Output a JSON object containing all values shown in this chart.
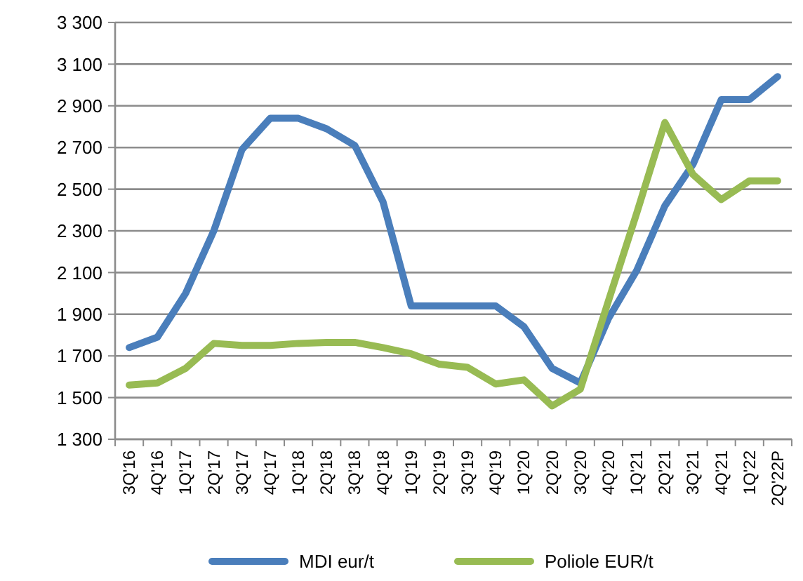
{
  "chart_data": {
    "type": "line",
    "categories": [
      "3Q'16",
      "4Q'16",
      "1Q'17",
      "2Q'17",
      "3Q'17",
      "4Q'17",
      "1Q'18",
      "2Q'18",
      "3Q'18",
      "4Q'18",
      "1Q'19",
      "2Q'19",
      "3Q'19",
      "4Q'19",
      "1Q'20",
      "2Q'20",
      "3Q'20",
      "4Q'20",
      "1Q'21",
      "2Q'21",
      "3Q'21",
      "4Q'21",
      "1Q'22",
      "2Q'22P"
    ],
    "series": [
      {
        "name": "MDI eur/t",
        "color": "#4a7ebb",
        "values": [
          1740,
          1790,
          2000,
          2300,
          2690,
          2840,
          2840,
          2790,
          2710,
          2440,
          1940,
          1940,
          1940,
          1940,
          1840,
          1640,
          1570,
          1880,
          2110,
          2420,
          2620,
          2930,
          2930,
          3040
        ]
      },
      {
        "name": "Poliole EUR/t",
        "color": "#98bb53",
        "values": [
          1560,
          1570,
          1640,
          1760,
          1750,
          1750,
          1760,
          1765,
          1765,
          1740,
          1710,
          1660,
          1645,
          1565,
          1585,
          1460,
          1540,
          1965,
          2385,
          2820,
          2570,
          2450,
          2540,
          2540
        ]
      }
    ],
    "ylim": [
      1300,
      3300
    ],
    "yticks": [
      {
        "value": 1300,
        "label": "1 300"
      },
      {
        "value": 1500,
        "label": "1 500"
      },
      {
        "value": 1700,
        "label": "1 700"
      },
      {
        "value": 1900,
        "label": "1 900"
      },
      {
        "value": 2100,
        "label": "2 100"
      },
      {
        "value": 2300,
        "label": "2 300"
      },
      {
        "value": 2500,
        "label": "2 500"
      },
      {
        "value": 2700,
        "label": "2 700"
      },
      {
        "value": 2900,
        "label": "2 900"
      },
      {
        "value": 3100,
        "label": "3 100"
      },
      {
        "value": 3300,
        "label": "3 300"
      }
    ],
    "grid": "y",
    "legend": "bottom",
    "marker": "none",
    "line_style": "solid"
  }
}
